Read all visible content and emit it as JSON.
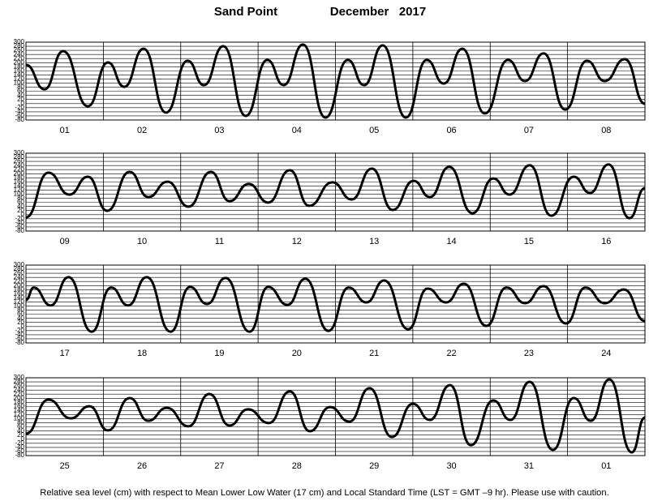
{
  "header": {
    "station": "Sand Point",
    "month": "December   2017"
  },
  "chart_data": [
    {
      "type": "line",
      "color": "#000000",
      "grid": true,
      "xlim": [
        0,
        8
      ],
      "ylim": [
        -80,
        300
      ],
      "yticks": [
        300,
        280,
        260,
        240,
        220,
        200,
        180,
        160,
        140,
        120,
        100,
        80,
        60,
        40,
        20,
        0,
        -20,
        -40,
        -60,
        -80
      ],
      "categories": [
        "01",
        "02",
        "03",
        "04",
        "05",
        "06",
        "07",
        "08"
      ],
      "x": [
        0,
        0.24,
        0.48,
        0.8,
        1.06,
        1.27,
        1.52,
        1.81,
        2.09,
        2.3,
        2.55,
        2.84,
        3.12,
        3.33,
        3.58,
        3.87,
        4.16,
        4.37,
        4.61,
        4.91,
        5.18,
        5.4,
        5.64,
        5.93,
        6.23,
        6.45,
        6.69,
        6.97,
        7.25,
        7.48,
        7.74,
        8
      ],
      "values": [
        189,
        70,
        256,
        -13,
        201,
        82,
        268,
        -44,
        209,
        90,
        280,
        -60,
        213,
        90,
        288,
        -68,
        213,
        90,
        284,
        -68,
        213,
        98,
        268,
        -48,
        213,
        110,
        245,
        -29,
        209,
        110,
        217,
        -1
      ]
    },
    {
      "type": "line",
      "color": "#000000",
      "grid": true,
      "xlim": [
        0,
        8
      ],
      "ylim": [
        -80,
        300
      ],
      "yticks": [
        300,
        280,
        260,
        240,
        220,
        200,
        180,
        160,
        140,
        120,
        100,
        80,
        60,
        40,
        20,
        0,
        -20,
        -40,
        -60,
        -80
      ],
      "categories": [
        "09",
        "10",
        "11",
        "12",
        "13",
        "14",
        "15",
        "16"
      ],
      "x": [
        0,
        0.29,
        0.56,
        0.8,
        1.05,
        1.34,
        1.58,
        1.83,
        2.1,
        2.39,
        2.63,
        2.88,
        3.13,
        3.41,
        3.66,
        3.96,
        4.21,
        4.47,
        4.74,
        5.01,
        5.22,
        5.47,
        5.77,
        6.04,
        6.25,
        6.51,
        6.79,
        7.08,
        7.29,
        7.53,
        7.8,
        8
      ],
      "values": [
        -13,
        205,
        98,
        185,
        19,
        209,
        86,
        161,
        39,
        209,
        66,
        150,
        59,
        217,
        43,
        158,
        74,
        225,
        23,
        165,
        86,
        233,
        7,
        177,
        98,
        241,
        -5,
        185,
        106,
        245,
        -17,
        130
      ]
    },
    {
      "type": "line",
      "color": "#000000",
      "grid": true,
      "xlim": [
        0,
        8
      ],
      "ylim": [
        -80,
        300
      ],
      "yticks": [
        300,
        280,
        260,
        240,
        220,
        200,
        180,
        160,
        140,
        120,
        100,
        80,
        60,
        40,
        20,
        0,
        -20,
        -40,
        -60,
        -80
      ],
      "categories": [
        "17",
        "18",
        "19",
        "20",
        "21",
        "22",
        "23",
        "24"
      ],
      "x": [
        0,
        0.1,
        0.32,
        0.55,
        0.85,
        1.1,
        1.32,
        1.56,
        1.87,
        2.12,
        2.34,
        2.58,
        2.89,
        3.13,
        3.38,
        3.61,
        3.91,
        4.17,
        4.4,
        4.63,
        4.94,
        5.19,
        5.43,
        5.66,
        5.95,
        6.21,
        6.45,
        6.69,
        6.98,
        7.23,
        7.48,
        7.73,
        8
      ],
      "values": [
        130,
        190,
        103,
        241,
        -25,
        190,
        103,
        241,
        -25,
        193,
        110,
        237,
        -25,
        193,
        106,
        233,
        -21,
        190,
        118,
        225,
        -13,
        185,
        118,
        209,
        3,
        190,
        114,
        197,
        15,
        190,
        114,
        181,
        27
      ]
    },
    {
      "type": "line",
      "color": "#000000",
      "grid": true,
      "xlim": [
        0,
        8
      ],
      "ylim": [
        -80,
        300
      ],
      "yticks": [
        300,
        280,
        260,
        240,
        220,
        200,
        180,
        160,
        140,
        120,
        100,
        80,
        60,
        40,
        20,
        0,
        -20,
        -40,
        -60,
        -80
      ],
      "categories": [
        "25",
        "26",
        "27",
        "28",
        "29",
        "30",
        "31",
        "01"
      ],
      "x": [
        0,
        0.29,
        0.58,
        0.82,
        1.06,
        1.34,
        1.58,
        1.82,
        2.1,
        2.37,
        2.63,
        2.87,
        3.14,
        3.41,
        3.67,
        3.93,
        4.18,
        4.44,
        4.73,
        5,
        5.22,
        5.48,
        5.75,
        6.04,
        6.26,
        6.51,
        6.81,
        7.08,
        7.3,
        7.54,
        7.83,
        8
      ],
      "values": [
        27,
        193,
        102,
        161,
        43,
        201,
        90,
        153,
        63,
        221,
        67,
        146,
        79,
        233,
        39,
        157,
        86,
        249,
        11,
        173,
        94,
        264,
        -29,
        189,
        94,
        280,
        -52,
        201,
        90,
        292,
        -64,
        106
      ]
    }
  ],
  "footnote": "Relative sea level (cm) with respect to Mean Lower Low Water (17 cm) and Local Standard Time (LST = GMT –9 hr). Please use with caution."
}
